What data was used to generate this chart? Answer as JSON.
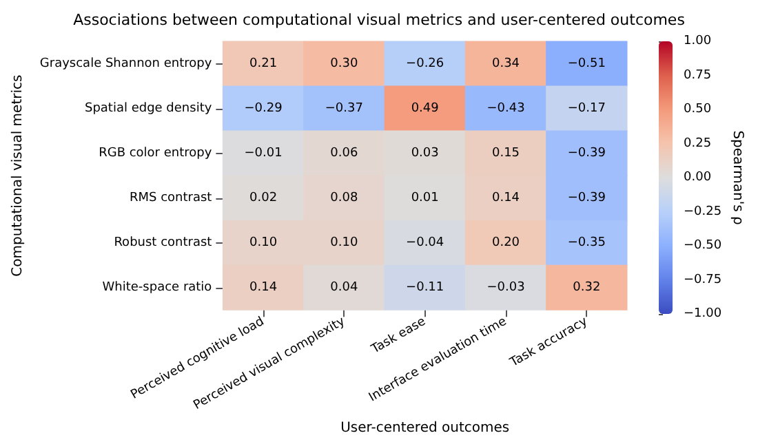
{
  "chart_data": {
    "type": "heatmap",
    "title": "Associations between computational visual metrics and user-centered outcomes",
    "xlabel": "User-centered outcomes",
    "ylabel": "Computational visual metrics",
    "clabel": "Spearman's ρ",
    "categories": [
      "Perceived cognitive load",
      "Perceived visual complexity",
      "Task ease",
      "Interface evaluation time",
      "Task accuracy"
    ],
    "y_categories": [
      "Grayscale Shannon entropy",
      "Spatial edge density",
      "RGB color entropy",
      "RMS contrast",
      "Robust contrast",
      "White-space ratio"
    ],
    "cells": [
      [
        0.21,
        0.3,
        -0.26,
        0.34,
        -0.51
      ],
      [
        -0.29,
        -0.37,
        0.49,
        -0.43,
        -0.17
      ],
      [
        -0.01,
        0.06,
        0.03,
        0.15,
        -0.39
      ],
      [
        0.02,
        0.08,
        0.01,
        0.14,
        -0.39
      ],
      [
        0.1,
        0.1,
        -0.04,
        0.2,
        -0.35
      ],
      [
        0.14,
        0.04,
        -0.11,
        -0.03,
        0.32
      ]
    ],
    "cell_labels": [
      [
        "0.21",
        "0.30",
        "−0.26",
        "0.34",
        "−0.51"
      ],
      [
        "−0.29",
        "−0.37",
        "0.49",
        "−0.43",
        "−0.17"
      ],
      [
        "−0.01",
        "0.06",
        "0.03",
        "0.15",
        "−0.39"
      ],
      [
        "0.02",
        "0.08",
        "0.01",
        "0.14",
        "−0.39"
      ],
      [
        "0.10",
        "0.10",
        "−0.04",
        "0.20",
        "−0.35"
      ],
      [
        "0.14",
        "0.04",
        "−0.11",
        "−0.03",
        "0.32"
      ]
    ],
    "clim": [
      -1,
      1
    ],
    "cticks": [
      {
        "value": -1,
        "label": "−1.00"
      },
      {
        "value": -0.75,
        "label": "−0.75"
      },
      {
        "value": -0.5,
        "label": "−0.50"
      },
      {
        "value": -0.25,
        "label": "−0.25"
      },
      {
        "value": 0,
        "label": "0.00"
      },
      {
        "value": 0.25,
        "label": "0.25"
      },
      {
        "value": 0.5,
        "label": "0.50"
      },
      {
        "value": 0.75,
        "label": "0.75"
      },
      {
        "value": 1,
        "label": "1.00"
      }
    ]
  }
}
